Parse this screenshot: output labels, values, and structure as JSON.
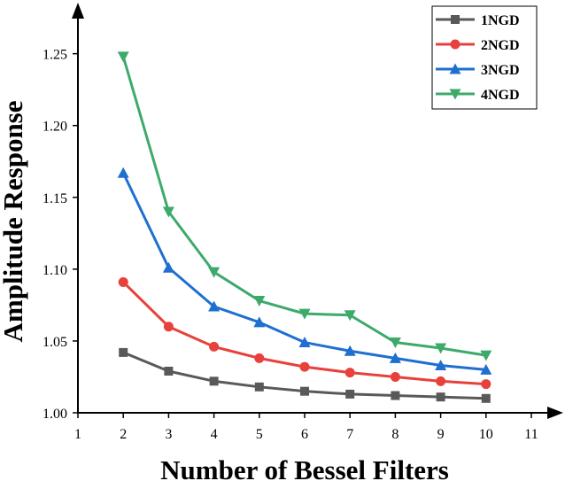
{
  "chart_data": {
    "type": "line",
    "xlabel": "Number of Bessel Filters",
    "ylabel": "Amplitude Response",
    "xlim": [
      1,
      11
    ],
    "ylim": [
      1.0,
      1.28
    ],
    "x_ticks": [
      1,
      2,
      3,
      4,
      5,
      6,
      7,
      8,
      9,
      10,
      11
    ],
    "y_ticks": [
      "1.00",
      "1.05",
      "1.10",
      "1.15",
      "1.20",
      "1.25"
    ],
    "x": [
      2,
      3,
      4,
      5,
      6,
      7,
      8,
      9,
      10
    ],
    "legend_position": "top-right",
    "grid": false,
    "series": [
      {
        "name": "1NGD",
        "color": "#595959",
        "marker": "square",
        "values": [
          1.042,
          1.029,
          1.022,
          1.018,
          1.015,
          1.013,
          1.012,
          1.011,
          1.01
        ]
      },
      {
        "name": "2NGD",
        "color": "#e8413c",
        "marker": "circle",
        "values": [
          1.091,
          1.06,
          1.046,
          1.038,
          1.032,
          1.028,
          1.025,
          1.022,
          1.02
        ]
      },
      {
        "name": "3NGD",
        "color": "#1f6fd1",
        "marker": "triangle-up",
        "values": [
          1.167,
          1.101,
          1.074,
          1.063,
          1.049,
          1.043,
          1.038,
          1.033,
          1.03
        ]
      },
      {
        "name": "4NGD",
        "color": "#3daa6b",
        "marker": "triangle-down",
        "values": [
          1.248,
          1.14,
          1.098,
          1.078,
          1.069,
          1.068,
          1.049,
          1.045,
          1.04
        ]
      }
    ]
  }
}
